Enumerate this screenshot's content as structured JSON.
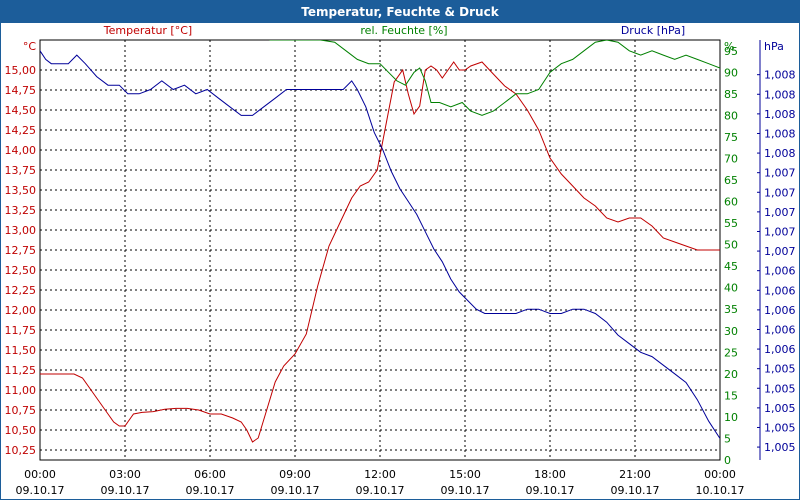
{
  "title": "Temperatur, Feuchte & Druck",
  "chart_data": {
    "type": "line",
    "title": "Temperatur, Feuchte & Druck",
    "x_ticks": [
      {
        "time": "00:00",
        "date": "09.10.17"
      },
      {
        "time": "03:00",
        "date": "09.10.17"
      },
      {
        "time": "06:00",
        "date": "09.10.17"
      },
      {
        "time": "09:00",
        "date": "09.10.17"
      },
      {
        "time": "12:00",
        "date": "09.10.17"
      },
      {
        "time": "15:00",
        "date": "09.10.17"
      },
      {
        "time": "18:00",
        "date": "09.10.17"
      },
      {
        "time": "21:00",
        "date": "09.10.17"
      },
      {
        "time": "00:00",
        "date": "10.10.17"
      }
    ],
    "x_unit_hours": [
      0,
      24
    ],
    "grid": true,
    "axes": {
      "temperature": {
        "label": "Temperatur [°C]",
        "unit": "°C",
        "color": "#c00000",
        "range": [
          10.125,
          15.375
        ],
        "ticks": [
          "10,25",
          "10,50",
          "10,75",
          "11,00",
          "11,25",
          "11,50",
          "11,75",
          "12,00",
          "12,25",
          "12,50",
          "12,75",
          "13,00",
          "13,25",
          "13,50",
          "13,75",
          "14,00",
          "14,25",
          "14,50",
          "14,75",
          "15,00"
        ]
      },
      "humidity": {
        "label": "rel. Feuchte [%]",
        "unit": "%",
        "color": "#008000",
        "range": [
          0,
          97.5
        ],
        "ticks": [
          "0",
          "5",
          "10",
          "15",
          "20",
          "25",
          "30",
          "35",
          "40",
          "45",
          "50",
          "55",
          "60",
          "65",
          "70",
          "75",
          "80",
          "85",
          "90",
          "95"
        ]
      },
      "pressure": {
        "label": "Druck [hPa]",
        "unit": "hPa",
        "color": "#000099",
        "ticks": [
          "1,005",
          "1,005",
          "1,005",
          "1,005",
          "1,005",
          "1,006",
          "1,006",
          "1,006",
          "1,006",
          "1,006",
          "1,007",
          "1,007",
          "1,007",
          "1,007",
          "1,007",
          "1,008",
          "1,008",
          "1,008",
          "1,008",
          "1,008"
        ]
      }
    },
    "series": [
      {
        "name": "Temperatur [°C]",
        "color": "#c00000",
        "axis": "temperature",
        "x": [
          0,
          0.8,
          1.2,
          1.5,
          1.8,
          2.1,
          2.4,
          2.6,
          2.8,
          3.0,
          3.1,
          3.3,
          3.6,
          4.0,
          4.4,
          4.8,
          5.2,
          5.6,
          6.0,
          6.4,
          6.8,
          7.1,
          7.3,
          7.5,
          7.7,
          8.0,
          8.3,
          8.6,
          9.0,
          9.4,
          9.8,
          10.2,
          10.6,
          11.0,
          11.3,
          11.6,
          11.9,
          12.2,
          12.5,
          12.8,
          13.0,
          13.2,
          13.4,
          13.6,
          13.8,
          14.0,
          14.2,
          14.4,
          14.6,
          14.8,
          15.0,
          15.2,
          15.6,
          16.0,
          16.4,
          16.8,
          17.2,
          17.6,
          18.0,
          18.4,
          18.8,
          19.2,
          19.6,
          20.0,
          20.4,
          20.8,
          21.2,
          21.6,
          22.0,
          22.4,
          22.8,
          23.2,
          23.6,
          24.0
        ],
        "y": [
          11.2,
          11.2,
          11.2,
          11.15,
          11.0,
          10.85,
          10.7,
          10.6,
          10.55,
          10.55,
          10.6,
          10.7,
          10.72,
          10.73,
          10.76,
          10.77,
          10.77,
          10.75,
          10.7,
          10.7,
          10.65,
          10.6,
          10.5,
          10.35,
          10.4,
          10.75,
          11.1,
          11.3,
          11.45,
          11.7,
          12.3,
          12.8,
          13.1,
          13.4,
          13.55,
          13.6,
          13.75,
          14.3,
          14.85,
          15.0,
          14.7,
          14.45,
          14.55,
          15.0,
          15.05,
          15.0,
          14.9,
          15.0,
          15.1,
          15.0,
          15.0,
          15.05,
          15.1,
          14.95,
          14.8,
          14.7,
          14.5,
          14.25,
          13.9,
          13.7,
          13.55,
          13.4,
          13.3,
          13.15,
          13.1,
          13.15,
          13.15,
          13.05,
          12.9,
          12.85,
          12.8,
          12.75,
          12.75,
          12.75
        ]
      },
      {
        "name": "rel. Feuchte [%]",
        "color": "#008000",
        "axis": "humidity",
        "x": [
          8.1,
          9.0,
          9.9,
          10.4,
          10.8,
          11.2,
          11.6,
          12.0,
          12.3,
          12.6,
          12.9,
          13.2,
          13.4,
          13.6,
          13.8,
          14.1,
          14.5,
          14.9,
          15.2,
          15.6,
          16.0,
          16.4,
          16.8,
          17.2,
          17.6,
          18.0,
          18.4,
          18.8,
          19.2,
          19.6,
          20.0,
          20.4,
          20.8,
          21.2,
          21.6,
          22.0,
          22.4,
          22.8,
          23.2,
          23.6,
          24.0
        ],
        "y": [
          97.5,
          97.5,
          97.5,
          97,
          95,
          93,
          92,
          92,
          90,
          88,
          87,
          90,
          91,
          88,
          83,
          83,
          82,
          83,
          81,
          80,
          81,
          83,
          85,
          85,
          86,
          90,
          92,
          93,
          95,
          97,
          97.5,
          97,
          95,
          94,
          95,
          94,
          93,
          94,
          93,
          92,
          91
        ]
      },
      {
        "name": "Druck [hPa]",
        "color": "#000099",
        "axis": "pressure",
        "x": [
          0,
          0.2,
          0.4,
          0.6,
          1.0,
          1.3,
          1.6,
          2.0,
          2.4,
          2.8,
          3.1,
          3.5,
          3.9,
          4.3,
          4.7,
          5.1,
          5.5,
          5.9,
          6.3,
          6.7,
          7.1,
          7.5,
          7.9,
          8.3,
          8.7,
          9.1,
          9.5,
          9.9,
          10.3,
          10.7,
          11.0,
          11.2,
          11.5,
          11.8,
          12.1,
          12.4,
          12.7,
          13.0,
          13.3,
          13.6,
          13.9,
          14.2,
          14.5,
          14.8,
          15.1,
          15.4,
          15.7,
          16.0,
          16.4,
          16.8,
          17.2,
          17.6,
          18.0,
          18.4,
          18.8,
          19.2,
          19.6,
          20.0,
          20.4,
          20.8,
          21.2,
          21.6,
          22.0,
          22.4,
          22.8,
          23.2,
          23.6,
          24.0
        ],
        "y": [
          95,
          93,
          92,
          92,
          92,
          94,
          92,
          89,
          87,
          87,
          85,
          85,
          86,
          88,
          86,
          87,
          85,
          86,
          84,
          82,
          80,
          80,
          82,
          84,
          86,
          86,
          86,
          86,
          86,
          86,
          88,
          86,
          82,
          76,
          72,
          67,
          63,
          60,
          57,
          53,
          49,
          46,
          42,
          39,
          37,
          35,
          34,
          34,
          34,
          34,
          35,
          35,
          34,
          34,
          35,
          35,
          34,
          32,
          29,
          27,
          25,
          24,
          22,
          20,
          18,
          14,
          9,
          5
        ]
      }
    ]
  }
}
